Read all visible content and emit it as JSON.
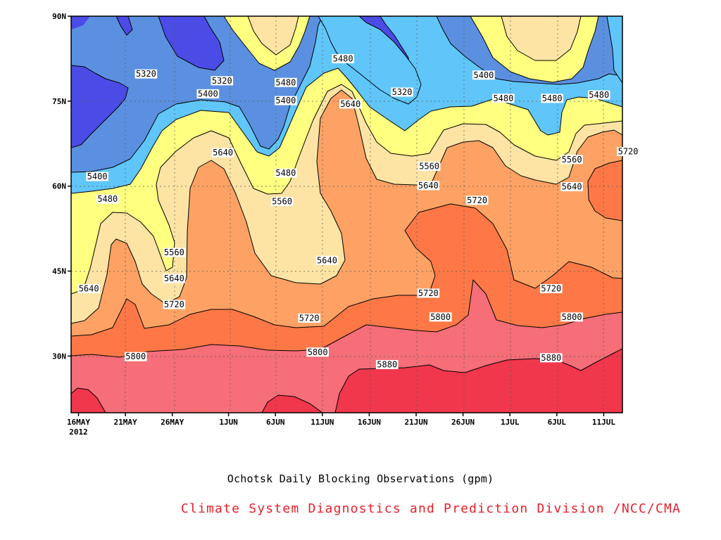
{
  "chart_data": {
    "type": "contour",
    "title": "Ochotsk Daily Blocking Observations (gpm)",
    "credit": "Climate System Diagnostics and Prediction Division /NCC/CMA",
    "y_axis": {
      "ticks": [
        {
          "value": 30,
          "label": "30N"
        },
        {
          "value": 45,
          "label": "45N"
        },
        {
          "value": 60,
          "label": "60N"
        },
        {
          "value": 75,
          "label": "75N"
        },
        {
          "value": 90,
          "label": "90N"
        }
      ],
      "range": [
        20,
        90
      ]
    },
    "x_axis": {
      "ticks": [
        {
          "day": 0,
          "label": "16MAY"
        },
        {
          "day": 5,
          "label": "21MAY"
        },
        {
          "day": 10,
          "label": "26MAY"
        },
        {
          "day": 16,
          "label": "1JUN"
        },
        {
          "day": 21,
          "label": "6JUN"
        },
        {
          "day": 26,
          "label": "11JUN"
        },
        {
          "day": 31,
          "label": "16JUN"
        },
        {
          "day": 36,
          "label": "21JUN"
        },
        {
          "day": 41,
          "label": "26JUN"
        },
        {
          "day": 46,
          "label": "1JUL"
        },
        {
          "day": 51,
          "label": "6JUL"
        },
        {
          "day": 56,
          "label": "11JUL"
        }
      ],
      "year_label": "2012",
      "range": [
        0,
        60
      ]
    },
    "contour_levels": [
      5320,
      5400,
      5480,
      5560,
      5640,
      5720,
      5800,
      5880
    ],
    "fill_colors": [
      "#4b4be6",
      "#5b90e0",
      "#60c6fa",
      "#ffff80",
      "#fde4a4",
      "#fda264",
      "#fd7846",
      "#f56e78",
      "#f0374b"
    ],
    "grid": true,
    "contour_labels": [
      {
        "value": "5320",
        "day": 7.2,
        "lat": 79.8
      },
      {
        "value": "5320",
        "day": 15.3,
        "lat": 78.6
      },
      {
        "value": "5320",
        "day": 34.5,
        "lat": 76.6
      },
      {
        "value": "5400",
        "day": 2.0,
        "lat": 61.7
      },
      {
        "value": "5400",
        "day": 13.8,
        "lat": 76.3
      },
      {
        "value": "5400",
        "day": 22.1,
        "lat": 75.1
      },
      {
        "value": "5400",
        "day": 43.2,
        "lat": 79.6
      },
      {
        "value": "5480",
        "day": 3.1,
        "lat": 57.7
      },
      {
        "value": "5480",
        "day": 22.1,
        "lat": 78.3
      },
      {
        "value": "5480",
        "day": 28.2,
        "lat": 82.5
      },
      {
        "value": "5480",
        "day": 22.1,
        "lat": 62.3
      },
      {
        "value": "5480",
        "day": 45.3,
        "lat": 75.5
      },
      {
        "value": "5480",
        "day": 50.5,
        "lat": 75.5
      },
      {
        "value": "5480",
        "day": 55.5,
        "lat": 76.1
      },
      {
        "value": "5560",
        "day": 10.2,
        "lat": 48.3
      },
      {
        "value": "5560",
        "day": 21.7,
        "lat": 57.3
      },
      {
        "value": "5560",
        "day": 37.4,
        "lat": 63.5
      },
      {
        "value": "5560",
        "day": 52.6,
        "lat": 64.7
      },
      {
        "value": "5640",
        "day": 1.1,
        "lat": 41.9
      },
      {
        "value": "5640",
        "day": 10.2,
        "lat": 43.7
      },
      {
        "value": "5640",
        "day": 15.4,
        "lat": 65.9
      },
      {
        "value": "5640",
        "day": 26.5,
        "lat": 46.9
      },
      {
        "value": "5640",
        "day": 29.0,
        "lat": 74.5
      },
      {
        "value": "5640",
        "day": 37.3,
        "lat": 60.1
      },
      {
        "value": "5640",
        "day": 52.6,
        "lat": 59.9
      },
      {
        "value": "5720",
        "day": 10.2,
        "lat": 39.1
      },
      {
        "value": "5720",
        "day": 24.6,
        "lat": 36.7
      },
      {
        "value": "5720",
        "day": 37.3,
        "lat": 41.1
      },
      {
        "value": "5720",
        "day": 42.5,
        "lat": 57.5
      },
      {
        "value": "5720",
        "day": 50.4,
        "lat": 41.9
      },
      {
        "value": "5720",
        "day": 58.6,
        "lat": 66.1
      },
      {
        "value": "5800",
        "day": 6.1,
        "lat": 29.9
      },
      {
        "value": "5800",
        "day": 25.5,
        "lat": 30.7
      },
      {
        "value": "5800",
        "day": 38.6,
        "lat": 36.9
      },
      {
        "value": "5800",
        "day": 52.6,
        "lat": 36.9
      },
      {
        "value": "5880",
        "day": 32.9,
        "lat": 28.5
      },
      {
        "value": "5880",
        "day": 50.4,
        "lat": 29.7
      }
    ]
  }
}
